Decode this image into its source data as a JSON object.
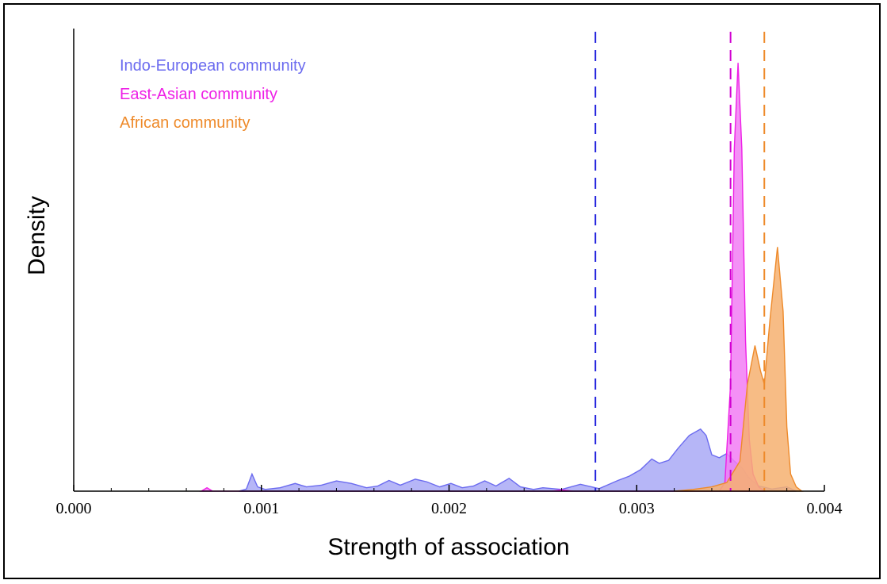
{
  "chart_data": {
    "type": "area",
    "xlabel": "Strength of association",
    "ylabel": "Density",
    "xlim": [
      0.0,
      0.004
    ],
    "ylim": [
      0,
      1.08
    ],
    "x_ticks": [
      "0.000",
      "0.001",
      "0.002",
      "0.003",
      "0.004"
    ],
    "x_tick_values": [
      0.0,
      0.001,
      0.002,
      0.003,
      0.004
    ],
    "x_minor_step": 0.0002,
    "grid": false,
    "legend_position": "top-left",
    "series": [
      {
        "name": "Indo-European community",
        "color": "#6b6bef",
        "fill": "#a9a9f6",
        "mean_line_color": "#2222dd",
        "mean": 0.00278,
        "points": [
          [
            0.00088,
            0
          ],
          [
            0.00092,
            0.005
          ],
          [
            0.00095,
            0.04
          ],
          [
            0.00098,
            0.01
          ],
          [
            0.00102,
            0.004
          ],
          [
            0.0011,
            0.008
          ],
          [
            0.00118,
            0.018
          ],
          [
            0.00124,
            0.01
          ],
          [
            0.00132,
            0.014
          ],
          [
            0.0014,
            0.024
          ],
          [
            0.00148,
            0.018
          ],
          [
            0.00156,
            0.008
          ],
          [
            0.00162,
            0.012
          ],
          [
            0.00168,
            0.025
          ],
          [
            0.00174,
            0.014
          ],
          [
            0.00182,
            0.028
          ],
          [
            0.00188,
            0.022
          ],
          [
            0.00195,
            0.01
          ],
          [
            0.00201,
            0.018
          ],
          [
            0.00207,
            0.008
          ],
          [
            0.00213,
            0.012
          ],
          [
            0.00219,
            0.024
          ],
          [
            0.00225,
            0.012
          ],
          [
            0.00232,
            0.03
          ],
          [
            0.00238,
            0.01
          ],
          [
            0.00245,
            0.004
          ],
          [
            0.0025,
            0.008
          ],
          [
            0.0026,
            0.004
          ],
          [
            0.0027,
            0.016
          ],
          [
            0.0028,
            0.006
          ],
          [
            0.0029,
            0.025
          ],
          [
            0.00296,
            0.035
          ],
          [
            0.00302,
            0.05
          ],
          [
            0.00308,
            0.075
          ],
          [
            0.00312,
            0.065
          ],
          [
            0.00317,
            0.072
          ],
          [
            0.00322,
            0.1
          ],
          [
            0.00328,
            0.13
          ],
          [
            0.00334,
            0.145
          ],
          [
            0.00337,
            0.13
          ],
          [
            0.0034,
            0.085
          ],
          [
            0.00344,
            0.078
          ],
          [
            0.00348,
            0.088
          ],
          [
            0.00352,
            0.07
          ],
          [
            0.00356,
            0.055
          ],
          [
            0.0036,
            0.03
          ],
          [
            0.00365,
            0.012
          ],
          [
            0.00372,
            0.005
          ],
          [
            0.0038,
            0.01
          ],
          [
            0.00385,
            0
          ]
        ]
      },
      {
        "name": "East-Asian community",
        "color": "#ee20e6",
        "fill": "#f27cf5",
        "mean_line_color": "#d000d0",
        "mean": 0.0035,
        "points": [
          [
            0.00068,
            0
          ],
          [
            0.00071,
            0.008
          ],
          [
            0.00074,
            0
          ],
          [
            0.00255,
            0
          ],
          [
            0.0026,
            0.003
          ],
          [
            0.00266,
            0
          ],
          [
            0.00344,
            0
          ],
          [
            0.00347,
            0.02
          ],
          [
            0.0035,
            0.25
          ],
          [
            0.00352,
            0.8
          ],
          [
            0.00354,
            1.0
          ],
          [
            0.00356,
            0.8
          ],
          [
            0.00358,
            0.35
          ],
          [
            0.0036,
            0.12
          ],
          [
            0.00362,
            0.04
          ],
          [
            0.00365,
            0.01
          ],
          [
            0.00368,
            0
          ]
        ]
      },
      {
        "name": "African community",
        "color": "#ee8a2a",
        "fill": "#f6b070",
        "mean_line_color": "#ee8a2a",
        "mean": 0.00368,
        "points": [
          [
            0.0032,
            0
          ],
          [
            0.0033,
            0.004
          ],
          [
            0.0034,
            0.01
          ],
          [
            0.00348,
            0.02
          ],
          [
            0.00355,
            0.07
          ],
          [
            0.00359,
            0.25
          ],
          [
            0.00363,
            0.34
          ],
          [
            0.00366,
            0.28
          ],
          [
            0.00368,
            0.25
          ],
          [
            0.00371,
            0.4
          ],
          [
            0.00375,
            0.57
          ],
          [
            0.00378,
            0.42
          ],
          [
            0.0038,
            0.15
          ],
          [
            0.00382,
            0.04
          ],
          [
            0.00385,
            0.01
          ],
          [
            0.00388,
            0
          ]
        ]
      }
    ]
  }
}
